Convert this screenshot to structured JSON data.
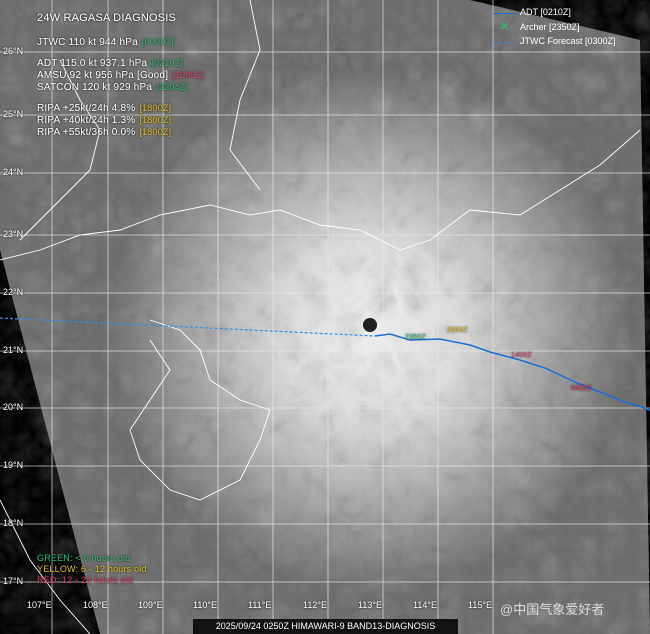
{
  "title": "24W  RAGASA  DIAGNOSIS",
  "jtwc": {
    "text": "JTWC  110 kt  944 hPa",
    "time": "[0000Z]"
  },
  "adt": {
    "text": "ADT  115.0 kt  937.1 hPa",
    "time": "[0210Z]"
  },
  "amsu": {
    "text": "AMSU  92 kt  956 hPa  [Good]",
    "time": "[1936Z]"
  },
  "satcon": {
    "text": "SATCON  120 kt  929 hPa",
    "time": "[2304Z]"
  },
  "ripa": [
    {
      "text": "RIPA  +25kt/24h 4.8%",
      "time": "[1800Z]"
    },
    {
      "text": "RIPA  +40kt/24h 1.3%",
      "time": "[1800Z]"
    },
    {
      "text": "RIPA  +55kt/36h 0.0%",
      "time": "[1800Z]"
    }
  ],
  "legend": {
    "adt": "ADT [0210Z]",
    "archer": "Archer [2350Z]",
    "jtwc": "JTWC Forecast [0300Z]"
  },
  "colors": {
    "adt": "#1f6fd0",
    "archer": "#2ebd6e",
    "jtwc": "#3a8fe0",
    "green": "#2ebd6e",
    "yellow": "#e0c020",
    "red": "#e0406a"
  },
  "age_key": {
    "green": "GREEN: < 6 hours old",
    "yellow": "YELLOW: 6 - 12 hours old",
    "red": "RED: 12 - 24 hours old"
  },
  "track_labels": {
    "green": "2350Z",
    "yellow": "2000Z",
    "red1": "1400Z",
    "red2": "0800Z"
  },
  "latitudes": [
    "26°N",
    "25°N",
    "24°N",
    "23°N",
    "22°N",
    "21°N",
    "20°N",
    "19°N",
    "18°N",
    "17°N"
  ],
  "longitudes": [
    "107°E",
    "108°E",
    "109°E",
    "110°E",
    "111°E",
    "112°E",
    "113°E",
    "114°E",
    "115°E"
  ],
  "footer": "2025/09/24 0250Z HIMAWARI-9 BAND13-DIAGNOSIS",
  "watermark": "@中国气象爱好者"
}
